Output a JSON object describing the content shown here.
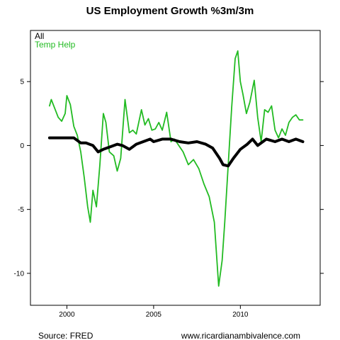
{
  "chart_data": {
    "type": "line",
    "title": "US Employment Growth %3m/3m",
    "xlabel": "",
    "ylabel": "",
    "xlim": [
      1997.9,
      2014.6
    ],
    "ylim": [
      -12.5,
      9.0
    ],
    "x_ticks": [
      2000,
      2005,
      2010
    ],
    "x_tick_labels": [
      "2000",
      "2005",
      "2010"
    ],
    "y_ticks": [
      5,
      0,
      -5,
      -10
    ],
    "y_tick_labels": [
      "5",
      "0",
      "-5",
      "-10"
    ],
    "grid": false,
    "legend_position": "top-left",
    "series": [
      {
        "name": "All",
        "color": "#000000",
        "x": [
          1999.0,
          1999.4,
          1999.8,
          2000.0,
          2000.4,
          2000.8,
          2001.1,
          2001.5,
          2001.8,
          2002.1,
          2002.5,
          2002.9,
          2003.2,
          2003.6,
          2004.0,
          2004.4,
          2004.8,
          2005.0,
          2005.5,
          2006.0,
          2006.5,
          2007.0,
          2007.5,
          2008.0,
          2008.4,
          2008.8,
          2009.0,
          2009.3,
          2009.6,
          2010.0,
          2010.4,
          2010.7,
          2011.0,
          2011.5,
          2012.0,
          2012.4,
          2012.8,
          2013.2,
          2013.6
        ],
        "values": [
          0.6,
          0.6,
          0.6,
          0.6,
          0.6,
          0.2,
          0.2,
          0.0,
          -0.5,
          -0.3,
          -0.1,
          0.1,
          0.0,
          -0.3,
          0.1,
          0.3,
          0.5,
          0.3,
          0.5,
          0.5,
          0.3,
          0.2,
          0.3,
          0.1,
          -0.2,
          -1.0,
          -1.5,
          -1.6,
          -1.0,
          -0.3,
          0.1,
          0.5,
          0.0,
          0.5,
          0.3,
          0.5,
          0.3,
          0.5,
          0.3
        ]
      },
      {
        "name": "Temp Help",
        "color": "#22bb22",
        "x": [
          1999.0,
          1999.1,
          1999.3,
          1999.5,
          1999.7,
          1999.9,
          2000.0,
          2000.2,
          2000.4,
          2000.6,
          2000.8,
          2001.0,
          2001.2,
          2001.35,
          2001.5,
          2001.7,
          2001.9,
          2002.1,
          2002.25,
          2002.45,
          2002.7,
          2002.9,
          2003.1,
          2003.35,
          2003.6,
          2003.8,
          2004.0,
          2004.3,
          2004.5,
          2004.7,
          2004.9,
          2005.1,
          2005.3,
          2005.5,
          2005.75,
          2006.0,
          2006.2,
          2006.4,
          2006.7,
          2007.0,
          2007.3,
          2007.6,
          2007.9,
          2008.2,
          2008.5,
          2008.75,
          2008.95,
          2009.1,
          2009.3,
          2009.5,
          2009.7,
          2009.85,
          2010.0,
          2010.15,
          2010.35,
          2010.55,
          2010.8,
          2011.0,
          2011.2,
          2011.4,
          2011.6,
          2011.8,
          2012.0,
          2012.2,
          2012.4,
          2012.6,
          2012.8,
          2013.0,
          2013.2,
          2013.4,
          2013.6
        ],
        "values": [
          3.1,
          3.6,
          2.9,
          2.2,
          1.9,
          2.5,
          3.9,
          3.2,
          1.5,
          0.8,
          -0.5,
          -2.5,
          -4.8,
          -6.0,
          -3.5,
          -4.8,
          -1.5,
          2.5,
          1.8,
          -0.5,
          -0.8,
          -2.0,
          -1.0,
          3.6,
          1.0,
          1.2,
          0.9,
          2.8,
          1.6,
          2.1,
          1.2,
          1.3,
          1.8,
          1.2,
          2.6,
          0.3,
          0.5,
          0.1,
          -0.5,
          -1.5,
          -1.1,
          -1.8,
          -3.0,
          -4.0,
          -6.0,
          -11.0,
          -9.0,
          -6.0,
          -1.5,
          3.0,
          6.8,
          7.4,
          5.0,
          4.0,
          2.5,
          3.4,
          5.1,
          2.2,
          0.3,
          2.8,
          2.6,
          3.1,
          1.2,
          0.6,
          1.3,
          0.8,
          1.8,
          2.2,
          2.4,
          2.0,
          2.0
        ]
      }
    ]
  },
  "footer": {
    "source": "Source: FRED",
    "website": "www.ricardianambivalence.com"
  }
}
